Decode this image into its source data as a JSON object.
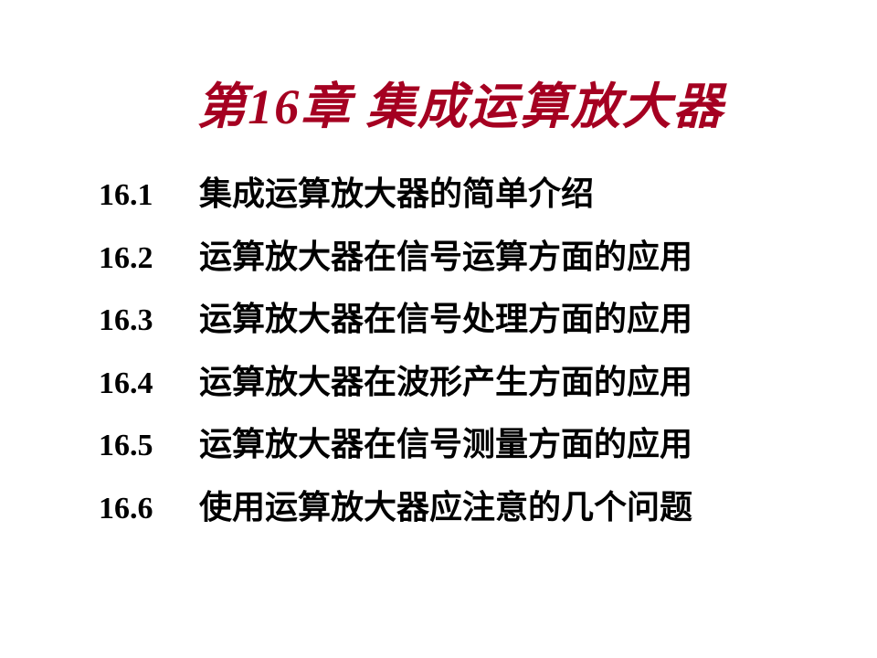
{
  "title": "第16章  集成运算放大器",
  "title_color": "#a50021",
  "title_fontsize": 54,
  "body_color": "#000000",
  "body_fontsize": 36,
  "background_color": "#ffffff",
  "toc": [
    {
      "number": "16.1",
      "text": "集成运算放大器的简单介绍"
    },
    {
      "number": "16.2",
      "text": "运算放大器在信号运算方面的应用"
    },
    {
      "number": "16.3",
      "text": "运算放大器在信号处理方面的应用"
    },
    {
      "number": "16.4",
      "text": "运算放大器在波形产生方面的应用"
    },
    {
      "number": "16.5",
      "text": "运算放大器在信号测量方面的应用"
    },
    {
      "number": "16.6",
      "text": "使用运算放大器应注意的几个问题"
    }
  ]
}
